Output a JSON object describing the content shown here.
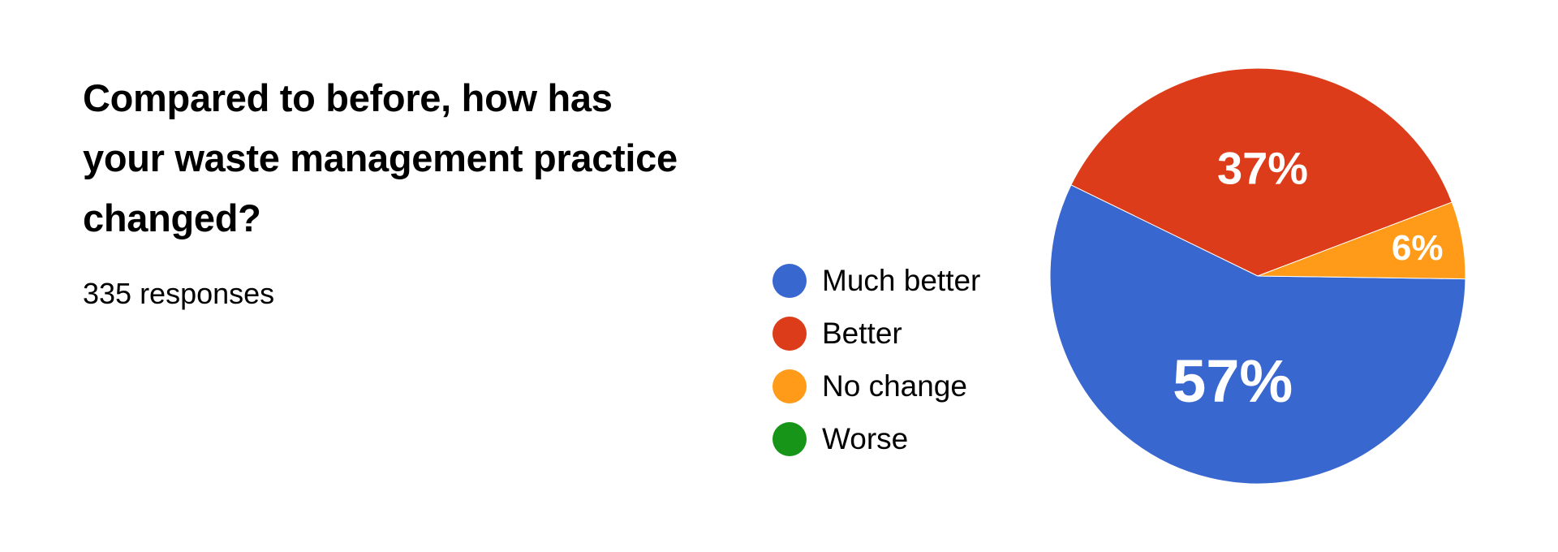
{
  "question": {
    "title": "Compared to before, how has your waste management practice changed?",
    "responses": "335 responses"
  },
  "chart_data": {
    "type": "pie",
    "categories": [
      "Much better",
      "Better",
      "No change",
      "Worse"
    ],
    "values": [
      57,
      37,
      6,
      0
    ],
    "colors": [
      "#3867d0",
      "#dc3c19",
      "#ff9b19",
      "#169519"
    ],
    "labels": [
      "57%",
      "37%",
      "6%",
      ""
    ],
    "legend_position": "left"
  }
}
